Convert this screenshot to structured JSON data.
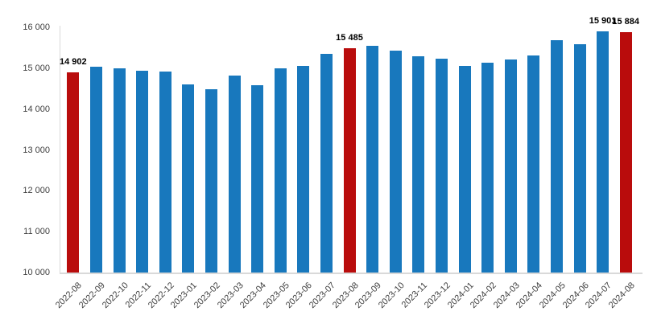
{
  "chart_data": {
    "type": "bar",
    "title": "",
    "xlabel": "",
    "ylabel": "",
    "ylim": [
      10000,
      16000
    ],
    "grid": false,
    "legend": "none",
    "bar_default_color": "#1878bd",
    "bar_highlight_color": "#b90c0c",
    "highlighted_categories": [
      "2022-08",
      "2023-08",
      "2024-08"
    ],
    "y_ticks": [
      {
        "value": 10000,
        "label": "10 000"
      },
      {
        "value": 11000,
        "label": "11 000"
      },
      {
        "value": 12000,
        "label": "12 000"
      },
      {
        "value": 13000,
        "label": "13 000"
      },
      {
        "value": 14000,
        "label": "14 000"
      },
      {
        "value": 15000,
        "label": "15 000"
      },
      {
        "value": 16000,
        "label": "16 000"
      }
    ],
    "categories": [
      "2022-08",
      "2022-09",
      "2022-10",
      "2022-11",
      "2022-12",
      "2023-01",
      "2023-02",
      "2023-03",
      "2023-04",
      "2023-05",
      "2023-06",
      "2023-07",
      "2023-08",
      "2023-09",
      "2023-10",
      "2023-11",
      "2023-12",
      "2024-01",
      "2024-02",
      "2024-03",
      "2024-04",
      "2024-05",
      "2024-06",
      "2024-07",
      "2024-08"
    ],
    "values": [
      14902,
      15035,
      14995,
      14930,
      14910,
      14600,
      14480,
      14815,
      14590,
      15005,
      15065,
      15350,
      15485,
      15555,
      15430,
      15285,
      15225,
      15065,
      15125,
      15215,
      15305,
      15695,
      15595,
      15901,
      15884
    ],
    "value_labels": [
      {
        "category": "2022-08",
        "text": "14 902"
      },
      {
        "category": "2023-08",
        "text": "15 485"
      },
      {
        "category": "2024-07",
        "text": "15 901"
      },
      {
        "category": "2024-08",
        "text": "15 884"
      }
    ]
  },
  "colors": {
    "background": "#ffffff",
    "axis_line": "#d9d9d9",
    "tick_label": "#404040",
    "value_label": "#000000"
  }
}
